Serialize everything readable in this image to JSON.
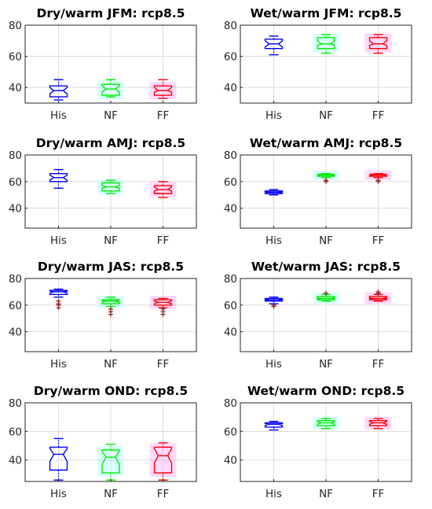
{
  "figure": {
    "background": "#ffffff",
    "grid": true,
    "series_colors": {
      "His": "#0000ff",
      "NF": "#00ee00",
      "FF": "#ff0000"
    },
    "shade_colors": {
      "NF": "#aaffff",
      "FF": "#ffaaff"
    },
    "dark_color": "#8b1a1a"
  },
  "chart_data": [
    {
      "type": "boxplot",
      "title": "Dry/warm JFM: rcp8.5",
      "categories": [
        "His",
        "NF",
        "FF"
      ],
      "ylim": [
        30,
        80
      ],
      "yticks": [
        40,
        60,
        80
      ],
      "xlabel": "",
      "ylabel": "",
      "notched": true,
      "series": [
        {
          "category": "His",
          "whisker_low": 32,
          "q1": 34,
          "notch_low": 36,
          "median": 38,
          "notch_high": 40,
          "q3": 41,
          "whisker_high": 45,
          "outliers": []
        },
        {
          "category": "NF",
          "whisker_low": 34,
          "q1": 35,
          "notch_low": 37,
          "median": 39,
          "notch_high": 41,
          "q3": 42,
          "whisker_high": 45,
          "outliers": []
        },
        {
          "category": "FF",
          "whisker_low": 33,
          "q1": 35,
          "notch_low": 37,
          "median": 38,
          "notch_high": 40,
          "q3": 41,
          "whisker_high": 45,
          "outliers": []
        }
      ]
    },
    {
      "type": "boxplot",
      "title": "Wet/warm JFM: rcp8.5",
      "categories": [
        "His",
        "NF",
        "FF"
      ],
      "ylim": [
        30,
        80
      ],
      "yticks": [
        40,
        60,
        80
      ],
      "xlabel": "",
      "ylabel": "",
      "notched": true,
      "series": [
        {
          "category": "His",
          "whisker_low": 61,
          "q1": 65,
          "notch_low": 66,
          "median": 68,
          "notch_high": 70,
          "q3": 71,
          "whisker_high": 73,
          "outliers": []
        },
        {
          "category": "NF",
          "whisker_low": 62,
          "q1": 65,
          "notch_low": 67,
          "median": 68,
          "notch_high": 70,
          "q3": 72,
          "whisker_high": 74,
          "outliers": []
        },
        {
          "category": "FF",
          "whisker_low": 62,
          "q1": 65,
          "notch_low": 67,
          "median": 68,
          "notch_high": 70,
          "q3": 72,
          "whisker_high": 74,
          "outliers": []
        }
      ]
    },
    {
      "type": "boxplot",
      "title": "Dry/warm AMJ: rcp8.5",
      "categories": [
        "His",
        "NF",
        "FF"
      ],
      "ylim": [
        25,
        80
      ],
      "yticks": [
        40,
        60,
        80
      ],
      "xlabel": "",
      "ylabel": "",
      "notched": true,
      "series": [
        {
          "category": "His",
          "whisker_low": 55,
          "q1": 60,
          "notch_low": 61,
          "median": 63,
          "notch_high": 65,
          "q3": 66,
          "whisker_high": 69,
          "outliers": []
        },
        {
          "category": "NF",
          "whisker_low": 51,
          "q1": 53,
          "notch_low": 55,
          "median": 56,
          "notch_high": 57,
          "q3": 59,
          "whisker_high": 61,
          "outliers": []
        },
        {
          "category": "FF",
          "whisker_low": 48,
          "q1": 51,
          "notch_low": 53,
          "median": 54,
          "notch_high": 56,
          "q3": 57,
          "whisker_high": 60,
          "outliers": []
        }
      ]
    },
    {
      "type": "boxplot",
      "title": "Wet/warm AMJ: rcp8.5",
      "categories": [
        "His",
        "NF",
        "FF"
      ],
      "ylim": [
        25,
        80
      ],
      "yticks": [
        40,
        60,
        80
      ],
      "xlabel": "",
      "ylabel": "",
      "notched": true,
      "series": [
        {
          "category": "His",
          "whisker_low": 50,
          "q1": 51,
          "notch_low": 51.5,
          "median": 52,
          "notch_high": 52.5,
          "q3": 53,
          "whisker_high": 54,
          "outliers": []
        },
        {
          "category": "NF",
          "whisker_low": 63,
          "q1": 64,
          "notch_low": 64.5,
          "median": 65,
          "notch_high": 65.5,
          "q3": 65.5,
          "whisker_high": 66,
          "outliers": [
            60,
            61
          ]
        },
        {
          "category": "FF",
          "whisker_low": 63,
          "q1": 64,
          "notch_low": 64.5,
          "median": 65,
          "notch_high": 65.5,
          "q3": 65.5,
          "whisker_high": 66,
          "outliers": [
            60,
            61
          ]
        }
      ]
    },
    {
      "type": "boxplot",
      "title": "Dry/warm JAS: rcp8.5",
      "categories": [
        "His",
        "NF",
        "FF"
      ],
      "ylim": [
        25,
        80
      ],
      "yticks": [
        40,
        60,
        80
      ],
      "xlabel": "",
      "ylabel": "",
      "notched": true,
      "series": [
        {
          "category": "His",
          "whisker_low": 66,
          "q1": 68,
          "notch_low": 69,
          "median": 70,
          "notch_high": 70.5,
          "q3": 71,
          "whisker_high": 72,
          "outliers": [
            58,
            60,
            61,
            63
          ]
        },
        {
          "category": "NF",
          "whisker_low": 59,
          "q1": 61,
          "notch_low": 62,
          "median": 63,
          "notch_high": 63.5,
          "q3": 64,
          "whisker_high": 66,
          "outliers": [
            53,
            55,
            57
          ]
        },
        {
          "category": "FF",
          "whisker_low": 58,
          "q1": 60,
          "notch_low": 61,
          "median": 62,
          "notch_high": 63,
          "q3": 64,
          "whisker_high": 65,
          "outliers": [
            53,
            55,
            57
          ]
        }
      ]
    },
    {
      "type": "boxplot",
      "title": "Wet/warm JAS: rcp8.5",
      "categories": [
        "His",
        "NF",
        "FF"
      ],
      "ylim": [
        25,
        80
      ],
      "yticks": [
        40,
        60,
        80
      ],
      "xlabel": "",
      "ylabel": "",
      "notched": true,
      "series": [
        {
          "category": "His",
          "whisker_low": 61,
          "q1": 63,
          "notch_low": 63.5,
          "median": 64,
          "notch_high": 64.5,
          "q3": 65,
          "whisker_high": 66,
          "outliers": [
            59,
            60
          ]
        },
        {
          "category": "NF",
          "whisker_low": 63,
          "q1": 64,
          "notch_low": 64.5,
          "median": 65,
          "notch_high": 65.5,
          "q3": 66.5,
          "whisker_high": 68,
          "outliers": [
            69
          ]
        },
        {
          "category": "FF",
          "whisker_low": 63,
          "q1": 64,
          "notch_low": 64.5,
          "median": 65,
          "notch_high": 65.5,
          "q3": 66.5,
          "whisker_high": 68,
          "outliers": [
            69,
            70
          ]
        }
      ]
    },
    {
      "type": "boxplot",
      "title": "Dry/warm OND: rcp8.5",
      "categories": [
        "His",
        "NF",
        "FF"
      ],
      "ylim": [
        25,
        80
      ],
      "yticks": [
        40,
        60,
        80
      ],
      "xlabel": "",
      "ylabel": "",
      "notched": true,
      "series": [
        {
          "category": "His",
          "whisker_low": 26,
          "q1": 33,
          "notch_low": 39,
          "median": 44,
          "notch_high": 48,
          "q3": 49,
          "whisker_high": 55,
          "outliers": []
        },
        {
          "category": "NF",
          "whisker_low": 26,
          "q1": 31,
          "notch_low": 37,
          "median": 42,
          "notch_high": 46,
          "q3": 47,
          "whisker_high": 51,
          "outliers": []
        },
        {
          "category": "FF",
          "whisker_low": 26,
          "q1": 31,
          "notch_low": 38,
          "median": 43,
          "notch_high": 48,
          "q3": 49,
          "whisker_high": 52,
          "outliers": []
        }
      ]
    },
    {
      "type": "boxplot",
      "title": "Wet/warm OND: rcp8.5",
      "categories": [
        "His",
        "NF",
        "FF"
      ],
      "ylim": [
        25,
        80
      ],
      "yticks": [
        40,
        60,
        80
      ],
      "xlabel": "",
      "ylabel": "",
      "notched": true,
      "series": [
        {
          "category": "His",
          "whisker_low": 61,
          "q1": 63,
          "notch_low": 64,
          "median": 65,
          "notch_high": 65.5,
          "q3": 66,
          "whisker_high": 67,
          "outliers": []
        },
        {
          "category": "NF",
          "whisker_low": 62,
          "q1": 64,
          "notch_low": 65,
          "median": 66,
          "notch_high": 67,
          "q3": 67.5,
          "whisker_high": 69,
          "outliers": []
        },
        {
          "category": "FF",
          "whisker_low": 62,
          "q1": 64,
          "notch_low": 65,
          "median": 66,
          "notch_high": 67,
          "q3": 67.5,
          "whisker_high": 69,
          "outliers": []
        }
      ]
    }
  ]
}
